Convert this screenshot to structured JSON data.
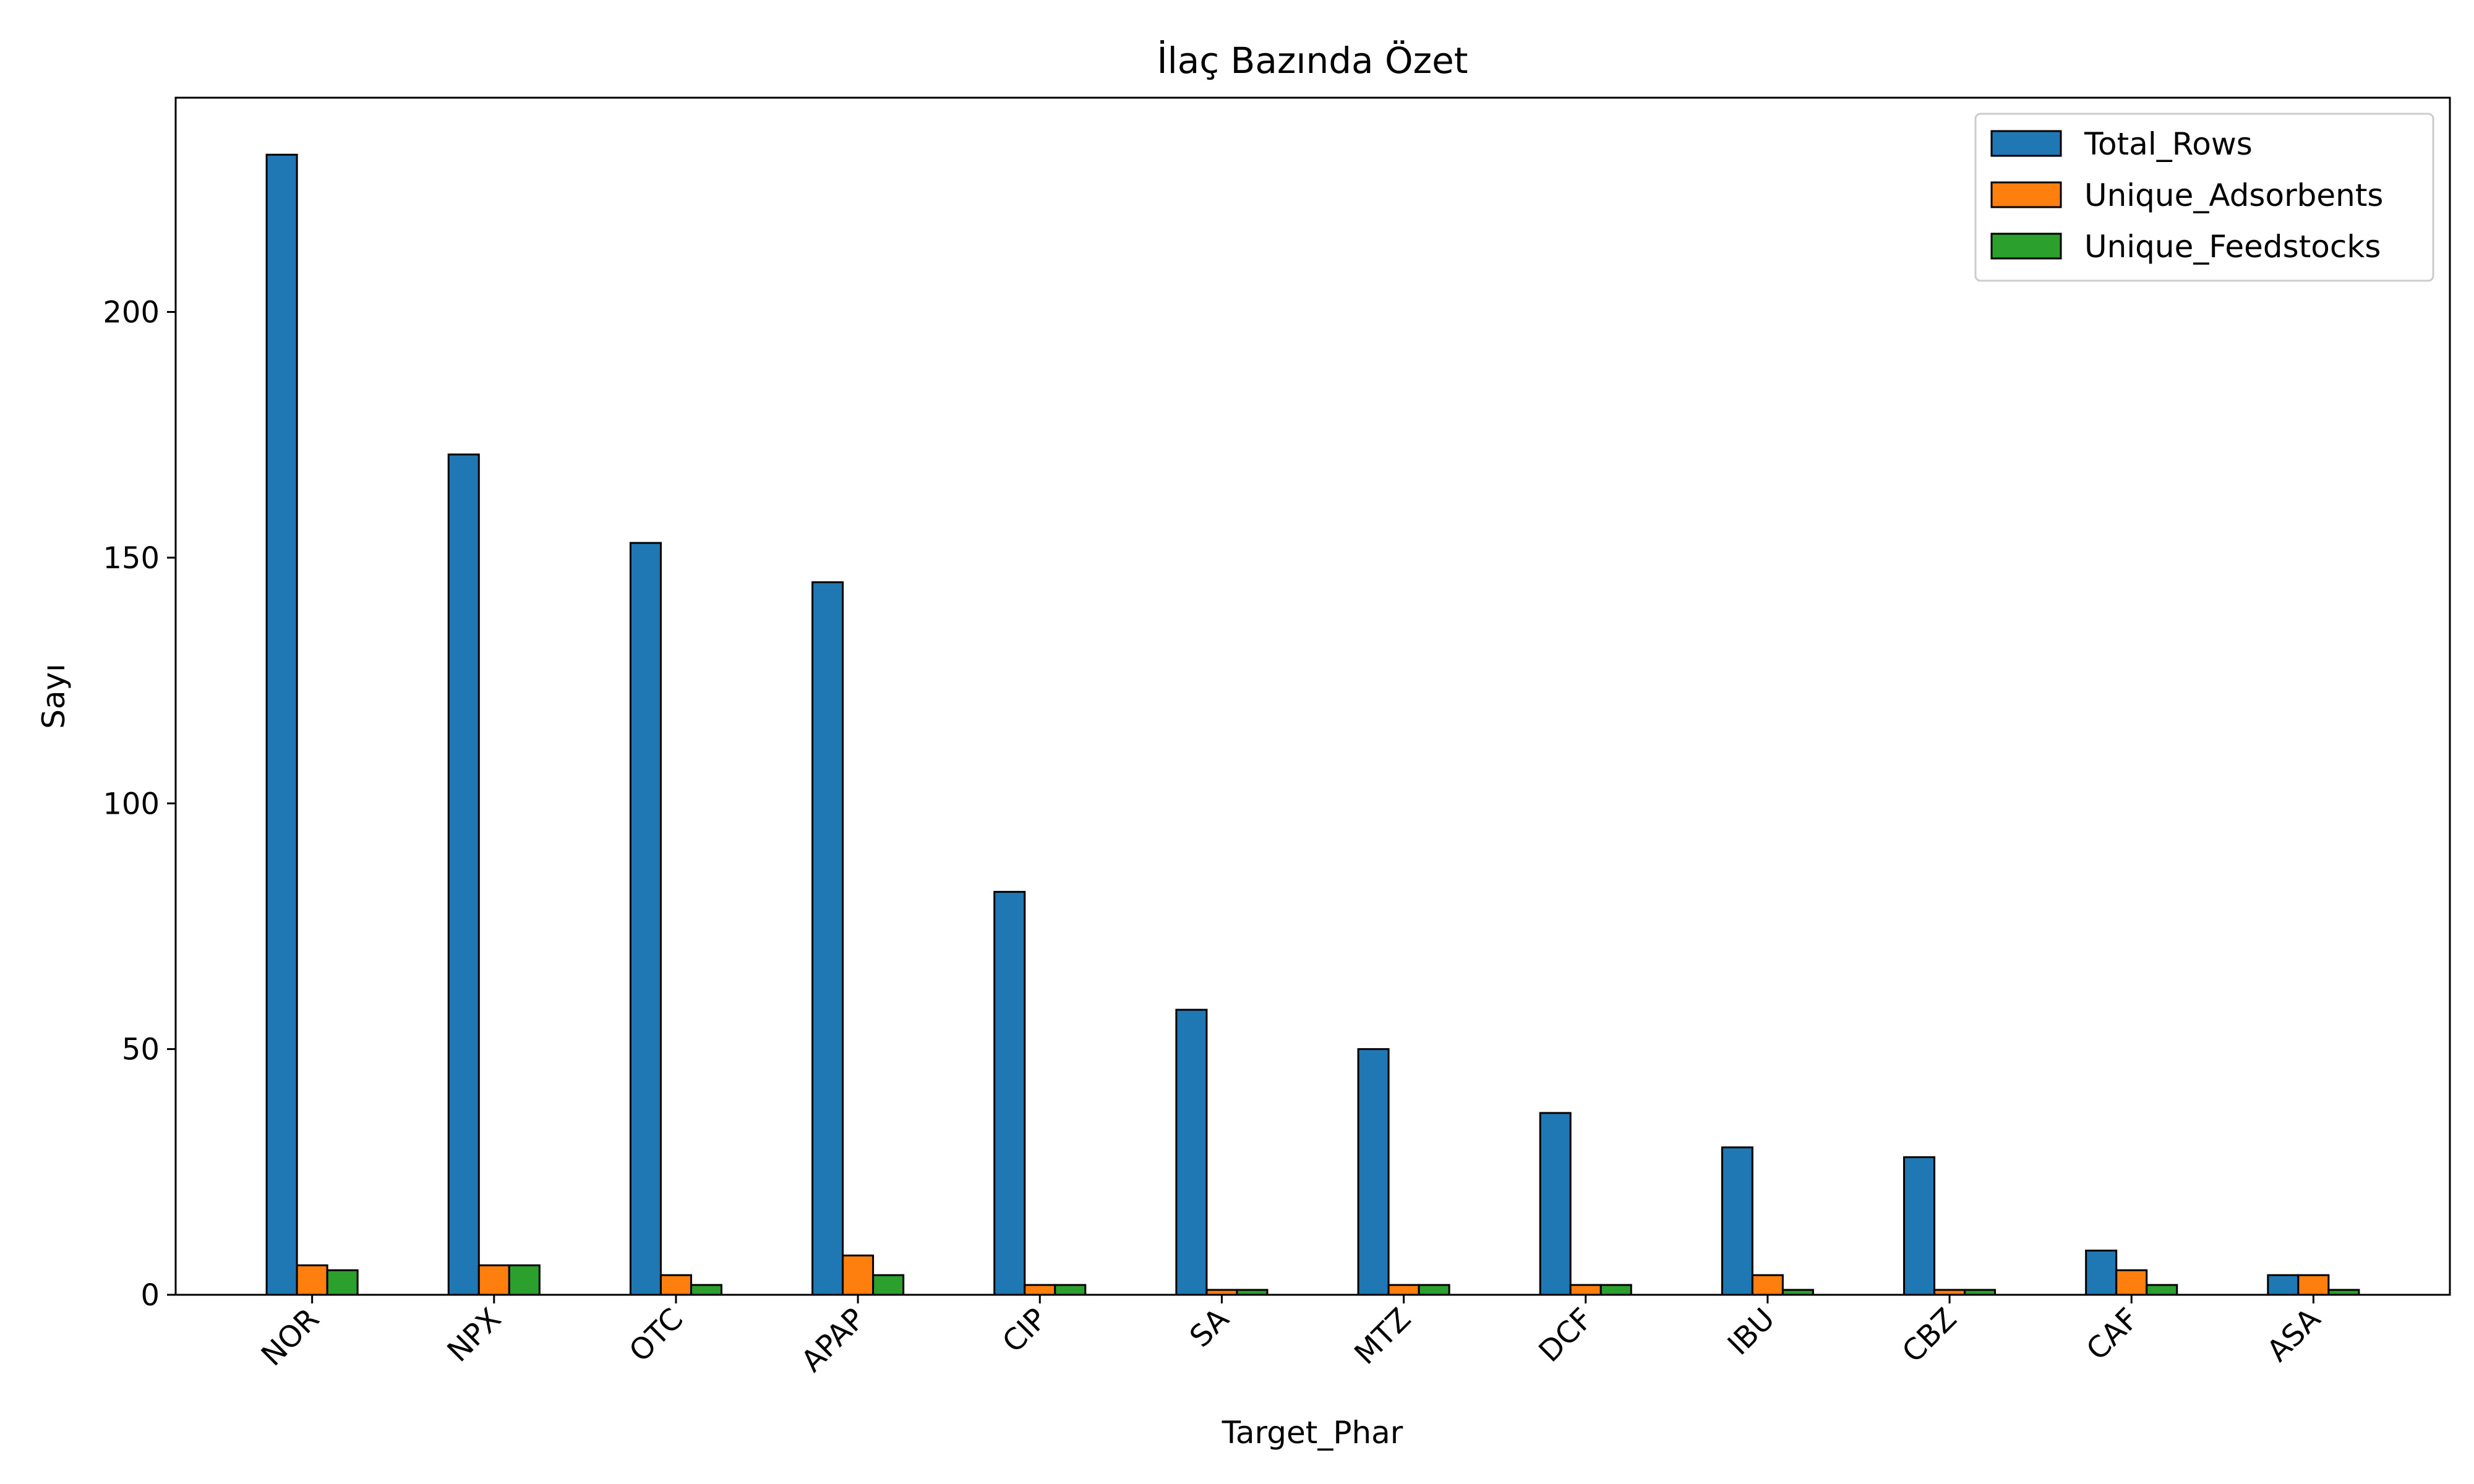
{
  "chart_data": {
    "type": "bar",
    "title": "İlaç Bazında Özet",
    "xlabel": "Target_Phar",
    "ylabel": "Sayı",
    "categories": [
      "NOR",
      "NPX",
      "OTC",
      "APAP",
      "CIP",
      "SA",
      "MTZ",
      "DCF",
      "IBU",
      "CBZ",
      "CAF",
      "ASA"
    ],
    "series": [
      {
        "name": "Total_Rows",
        "color": "#1f77b4",
        "values": [
          232,
          171,
          153,
          145,
          82,
          58,
          50,
          37,
          30,
          28,
          9,
          4
        ]
      },
      {
        "name": "Unique_Adsorbents",
        "color": "#ff7f0e",
        "values": [
          6,
          6,
          4,
          8,
          2,
          1,
          2,
          2,
          4,
          1,
          5,
          4
        ]
      },
      {
        "name": "Unique_Feedstocks",
        "color": "#2ca02c",
        "values": [
          5,
          6,
          2,
          4,
          2,
          1,
          2,
          2,
          1,
          1,
          2,
          1
        ]
      }
    ],
    "ylim": [
      0,
      243.6
    ],
    "yticks": [
      0,
      50,
      100,
      150,
      200
    ],
    "grid": false,
    "legend_position": "top-right"
  }
}
